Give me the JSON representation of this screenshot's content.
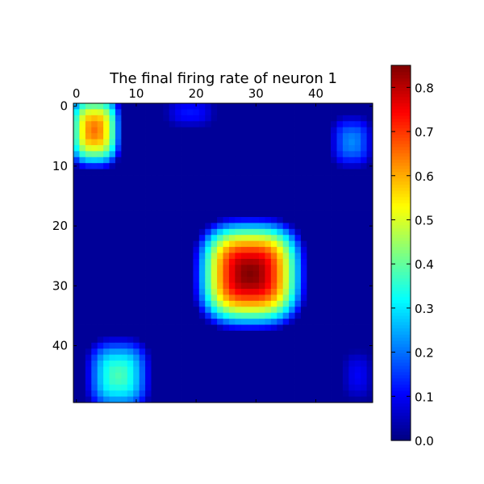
{
  "chart_data": {
    "type": "heatmap",
    "title": "The final firing rate of neuron 1",
    "xlabel": "",
    "ylabel": "",
    "grid_size": [
      50,
      50
    ],
    "x_axis_position": "top",
    "x_ticks": [
      0,
      10,
      20,
      30,
      40
    ],
    "y_ticks": [
      0,
      10,
      20,
      30,
      40
    ],
    "x_tick_labels": [
      "0",
      "10",
      "20",
      "30",
      "40"
    ],
    "y_tick_labels": [
      "0",
      "10",
      "20",
      "30",
      "40"
    ],
    "colormap": "jet",
    "background_value": 0.02,
    "value_range": [
      0.0,
      0.85
    ],
    "colorbar": {
      "ticks": [
        0.0,
        0.1,
        0.2,
        0.3,
        0.4,
        0.5,
        0.6,
        0.7,
        0.8
      ],
      "tick_labels": [
        "0.0",
        "0.1",
        "0.2",
        "0.3",
        "0.4",
        "0.5",
        "0.6",
        "0.7",
        "0.8"
      ],
      "placement": "right"
    },
    "regions": [
      {
        "label": "top-left blob",
        "center_col": 3,
        "center_row": 4,
        "radius_col": 5,
        "radius_row": 7,
        "peak": 0.65
      },
      {
        "label": "central peak",
        "center_col": 29,
        "center_row": 28,
        "radius_col": 10,
        "radius_row": 10,
        "peak": 0.85
      },
      {
        "label": "bottom-left blob",
        "center_col": 7,
        "center_row": 45,
        "radius_col": 6,
        "radius_row": 7,
        "peak": 0.38
      },
      {
        "label": "top-right spot",
        "center_col": 46,
        "center_row": 6,
        "radius_col": 4,
        "radius_row": 5,
        "peak": 0.22
      },
      {
        "label": "top-middle spot",
        "center_col": 19,
        "center_row": 1,
        "radius_col": 5,
        "radius_row": 3,
        "peak": 0.12
      },
      {
        "label": "bottom-right spot",
        "center_col": 47,
        "center_row": 45,
        "radius_col": 3,
        "radius_row": 5,
        "peak": 0.1
      }
    ]
  }
}
